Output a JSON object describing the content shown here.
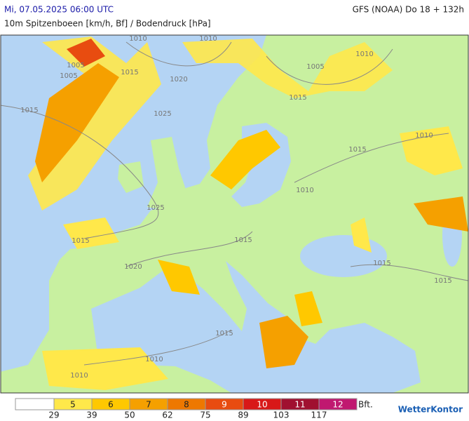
{
  "header": {
    "datetime": "Mi, 07.05.2025 06:00 UTC",
    "model": "GFS (NOAA) Do 18 + 132h",
    "subtitle": "10m Spitzenboeen [km/h, Bf] / Bodendruck [hPa]"
  },
  "isobar_labels": [
    "1010",
    "1010",
    "1005",
    "1005",
    "1015",
    "1020",
    "1015",
    "1025",
    "1005",
    "1010",
    "1015",
    "1010",
    "1015",
    "1010",
    "1025",
    "1015",
    "1015",
    "1020",
    "1015",
    "1015",
    "1015",
    "1010",
    "1010"
  ],
  "legend": {
    "classes": [
      {
        "bft": 5,
        "color": "#ffe84a",
        "kmh": 29
      },
      {
        "bft": 6,
        "color": "#ffc800",
        "kmh": 39
      },
      {
        "bft": 7,
        "color": "#f5a000",
        "kmh": 50
      },
      {
        "bft": 8,
        "color": "#ee7800",
        "kmh": 62
      },
      {
        "bft": 9,
        "color": "#e84c10",
        "kmh": 75
      },
      {
        "bft": 10,
        "color": "#d81818",
        "kmh": 89
      },
      {
        "bft": 11,
        "color": "#a01030",
        "kmh": 103
      },
      {
        "bft": 12,
        "color": "#c01870",
        "kmh": 117
      }
    ],
    "unit": "Bft."
  },
  "logo": "WetterKontor"
}
